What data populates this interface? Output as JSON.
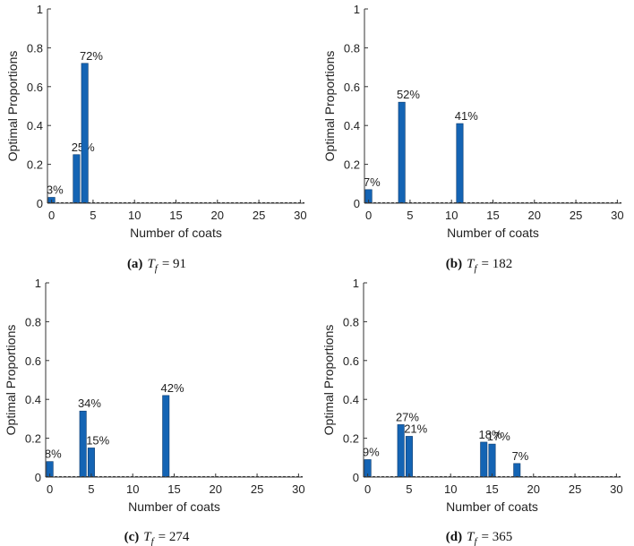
{
  "colors": {
    "bar": "#1464b4",
    "bar_edge": "#0b3a6e",
    "axis": "#333333",
    "text": "#222222"
  },
  "chart_data": [
    {
      "type": "bar",
      "title": "",
      "xlabel": "Number of coats",
      "ylabel": "Optimal Proportions",
      "xlim": [
        -0.5,
        30.5
      ],
      "ylim": [
        0,
        1
      ],
      "xticks": [
        "0",
        "5",
        "10",
        "15",
        "20",
        "25",
        "30"
      ],
      "yticks": [
        "0",
        "0.2",
        "0.4",
        "0.6",
        "0.8",
        "1"
      ],
      "x": [
        0,
        3,
        4
      ],
      "values": [
        0.03,
        0.25,
        0.72
      ],
      "labels": [
        "3%",
        "25%",
        "72%"
      ],
      "caption": {
        "letter": "(a)",
        "var": "T",
        "sub": "f",
        "rest": "= 91"
      }
    },
    {
      "type": "bar",
      "title": "",
      "xlabel": "Number of coats",
      "ylabel": "Optimal Proportions",
      "xlim": [
        -0.5,
        30.5
      ],
      "ylim": [
        0,
        1
      ],
      "xticks": [
        "0",
        "5",
        "10",
        "15",
        "20",
        "25",
        "30"
      ],
      "yticks": [
        "0",
        "0.2",
        "0.4",
        "0.6",
        "0.8",
        "1"
      ],
      "x": [
        0,
        4,
        11
      ],
      "values": [
        0.07,
        0.52,
        0.41
      ],
      "labels": [
        "7%",
        "52%",
        "41%"
      ],
      "caption": {
        "letter": "(b)",
        "var": "T",
        "sub": "f",
        "rest": "= 182"
      }
    },
    {
      "type": "bar",
      "title": "",
      "xlabel": "Number of coats",
      "ylabel": "Optimal Proportions",
      "xlim": [
        -0.5,
        30.5
      ],
      "ylim": [
        0,
        1
      ],
      "xticks": [
        "0",
        "5",
        "10",
        "15",
        "20",
        "25",
        "30"
      ],
      "yticks": [
        "0",
        "0.2",
        "0.4",
        "0.6",
        "0.8",
        "1"
      ],
      "x": [
        0,
        4,
        5,
        14
      ],
      "values": [
        0.08,
        0.34,
        0.15,
        0.42
      ],
      "labels": [
        "8%",
        "34%",
        "15%",
        "42%"
      ],
      "caption": {
        "letter": "(c)",
        "var": "T",
        "sub": "f",
        "rest": "= 274"
      }
    },
    {
      "type": "bar",
      "title": "",
      "xlabel": "Number of coats",
      "ylabel": "Optimal Proportions",
      "xlim": [
        -0.5,
        30.5
      ],
      "ylim": [
        0,
        1
      ],
      "xticks": [
        "0",
        "5",
        "10",
        "15",
        "20",
        "25",
        "30"
      ],
      "yticks": [
        "0",
        "0.2",
        "0.4",
        "0.6",
        "0.8",
        "1"
      ],
      "x": [
        0,
        4,
        5,
        14,
        15,
        18
      ],
      "values": [
        0.09,
        0.27,
        0.21,
        0.18,
        0.17,
        0.07
      ],
      "labels": [
        "9%",
        "27%",
        "21%",
        "18%",
        "17%",
        "7%"
      ],
      "caption": {
        "letter": "(d)",
        "var": "T",
        "sub": "f",
        "rest": "= 365"
      }
    }
  ]
}
